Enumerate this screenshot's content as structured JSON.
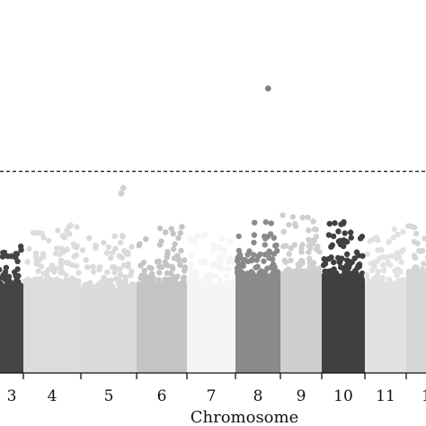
{
  "chart_data": {
    "type": "scatter",
    "subtype": "manhattan",
    "xlabel": "Chromosome",
    "ylabel": "",
    "title": "",
    "grid": false,
    "legend": "none",
    "threshold_line": {
      "style": "dashed",
      "value": 7.3
    },
    "y_range": [
      0,
      13.5
    ],
    "chromosomes": [
      {
        "label": "3",
        "color": "#454545",
        "ceiling": 4.3,
        "top": 4.6,
        "outliers": []
      },
      {
        "label": "4",
        "color": "#dcdcdc",
        "ceiling": 4.6,
        "top": 5.4,
        "outliers": []
      },
      {
        "label": "5",
        "color": "#dadada",
        "ceiling": 4.3,
        "top": 5.1,
        "outliers": [
          6.5,
          6.7
        ]
      },
      {
        "label": "6",
        "color": "#c4c4c4",
        "ceiling": 4.6,
        "top": 5.3,
        "outliers": []
      },
      {
        "label": "7",
        "color": "#f5f5f5",
        "ceiling": 4.5,
        "top": 5.1,
        "outliers": []
      },
      {
        "label": "8",
        "color": "#8a8a8a",
        "ceiling": 5.0,
        "top": 5.6,
        "outliers": [
          10.3
        ]
      },
      {
        "label": "9",
        "color": "#cfcfcf",
        "ceiling": 5.1,
        "top": 5.9,
        "outliers": []
      },
      {
        "label": "10",
        "color": "#404040",
        "ceiling": 5.0,
        "top": 5.5,
        "outliers": []
      },
      {
        "label": "11",
        "color": "#e2e2e2",
        "ceiling": 4.6,
        "top": 5.2,
        "outliers": []
      },
      {
        "label": "1",
        "color": "#d6d6d6",
        "ceiling": 5.0,
        "top": 5.4,
        "outliers": []
      }
    ]
  }
}
